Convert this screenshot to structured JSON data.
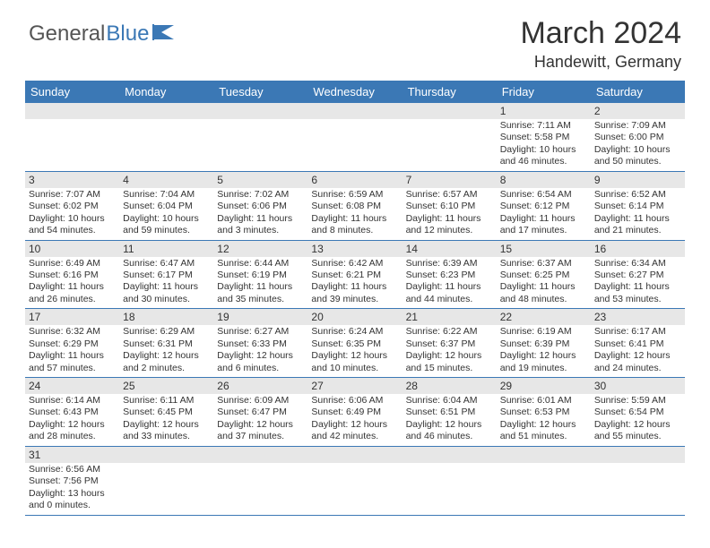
{
  "logo": {
    "part1": "General",
    "part2": "Blue"
  },
  "title": {
    "month": "March 2024",
    "location": "Handewitt, Germany"
  },
  "dayHeaders": [
    "Sunday",
    "Monday",
    "Tuesday",
    "Wednesday",
    "Thursday",
    "Friday",
    "Saturday"
  ],
  "colors": {
    "headerBg": "#3b78b5",
    "rowAlt": "#e7e7e7",
    "text": "#333333"
  },
  "weeks": [
    {
      "nums": [
        "",
        "",
        "",
        "",
        "",
        "1",
        "2"
      ],
      "details": [
        "",
        "",
        "",
        "",
        "",
        "Sunrise: 7:11 AM\nSunset: 5:58 PM\nDaylight: 10 hours\nand 46 minutes.",
        "Sunrise: 7:09 AM\nSunset: 6:00 PM\nDaylight: 10 hours\nand 50 minutes."
      ]
    },
    {
      "nums": [
        "3",
        "4",
        "5",
        "6",
        "7",
        "8",
        "9"
      ],
      "details": [
        "Sunrise: 7:07 AM\nSunset: 6:02 PM\nDaylight: 10 hours\nand 54 minutes.",
        "Sunrise: 7:04 AM\nSunset: 6:04 PM\nDaylight: 10 hours\nand 59 minutes.",
        "Sunrise: 7:02 AM\nSunset: 6:06 PM\nDaylight: 11 hours\nand 3 minutes.",
        "Sunrise: 6:59 AM\nSunset: 6:08 PM\nDaylight: 11 hours\nand 8 minutes.",
        "Sunrise: 6:57 AM\nSunset: 6:10 PM\nDaylight: 11 hours\nand 12 minutes.",
        "Sunrise: 6:54 AM\nSunset: 6:12 PM\nDaylight: 11 hours\nand 17 minutes.",
        "Sunrise: 6:52 AM\nSunset: 6:14 PM\nDaylight: 11 hours\nand 21 minutes."
      ]
    },
    {
      "nums": [
        "10",
        "11",
        "12",
        "13",
        "14",
        "15",
        "16"
      ],
      "details": [
        "Sunrise: 6:49 AM\nSunset: 6:16 PM\nDaylight: 11 hours\nand 26 minutes.",
        "Sunrise: 6:47 AM\nSunset: 6:17 PM\nDaylight: 11 hours\nand 30 minutes.",
        "Sunrise: 6:44 AM\nSunset: 6:19 PM\nDaylight: 11 hours\nand 35 minutes.",
        "Sunrise: 6:42 AM\nSunset: 6:21 PM\nDaylight: 11 hours\nand 39 minutes.",
        "Sunrise: 6:39 AM\nSunset: 6:23 PM\nDaylight: 11 hours\nand 44 minutes.",
        "Sunrise: 6:37 AM\nSunset: 6:25 PM\nDaylight: 11 hours\nand 48 minutes.",
        "Sunrise: 6:34 AM\nSunset: 6:27 PM\nDaylight: 11 hours\nand 53 minutes."
      ]
    },
    {
      "nums": [
        "17",
        "18",
        "19",
        "20",
        "21",
        "22",
        "23"
      ],
      "details": [
        "Sunrise: 6:32 AM\nSunset: 6:29 PM\nDaylight: 11 hours\nand 57 minutes.",
        "Sunrise: 6:29 AM\nSunset: 6:31 PM\nDaylight: 12 hours\nand 2 minutes.",
        "Sunrise: 6:27 AM\nSunset: 6:33 PM\nDaylight: 12 hours\nand 6 minutes.",
        "Sunrise: 6:24 AM\nSunset: 6:35 PM\nDaylight: 12 hours\nand 10 minutes.",
        "Sunrise: 6:22 AM\nSunset: 6:37 PM\nDaylight: 12 hours\nand 15 minutes.",
        "Sunrise: 6:19 AM\nSunset: 6:39 PM\nDaylight: 12 hours\nand 19 minutes.",
        "Sunrise: 6:17 AM\nSunset: 6:41 PM\nDaylight: 12 hours\nand 24 minutes."
      ]
    },
    {
      "nums": [
        "24",
        "25",
        "26",
        "27",
        "28",
        "29",
        "30"
      ],
      "details": [
        "Sunrise: 6:14 AM\nSunset: 6:43 PM\nDaylight: 12 hours\nand 28 minutes.",
        "Sunrise: 6:11 AM\nSunset: 6:45 PM\nDaylight: 12 hours\nand 33 minutes.",
        "Sunrise: 6:09 AM\nSunset: 6:47 PM\nDaylight: 12 hours\nand 37 minutes.",
        "Sunrise: 6:06 AM\nSunset: 6:49 PM\nDaylight: 12 hours\nand 42 minutes.",
        "Sunrise: 6:04 AM\nSunset: 6:51 PM\nDaylight: 12 hours\nand 46 minutes.",
        "Sunrise: 6:01 AM\nSunset: 6:53 PM\nDaylight: 12 hours\nand 51 minutes.",
        "Sunrise: 5:59 AM\nSunset: 6:54 PM\nDaylight: 12 hours\nand 55 minutes."
      ]
    },
    {
      "nums": [
        "31",
        "",
        "",
        "",
        "",
        "",
        ""
      ],
      "details": [
        "Sunrise: 6:56 AM\nSunset: 7:56 PM\nDaylight: 13 hours\nand 0 minutes.",
        "",
        "",
        "",
        "",
        "",
        ""
      ]
    }
  ]
}
